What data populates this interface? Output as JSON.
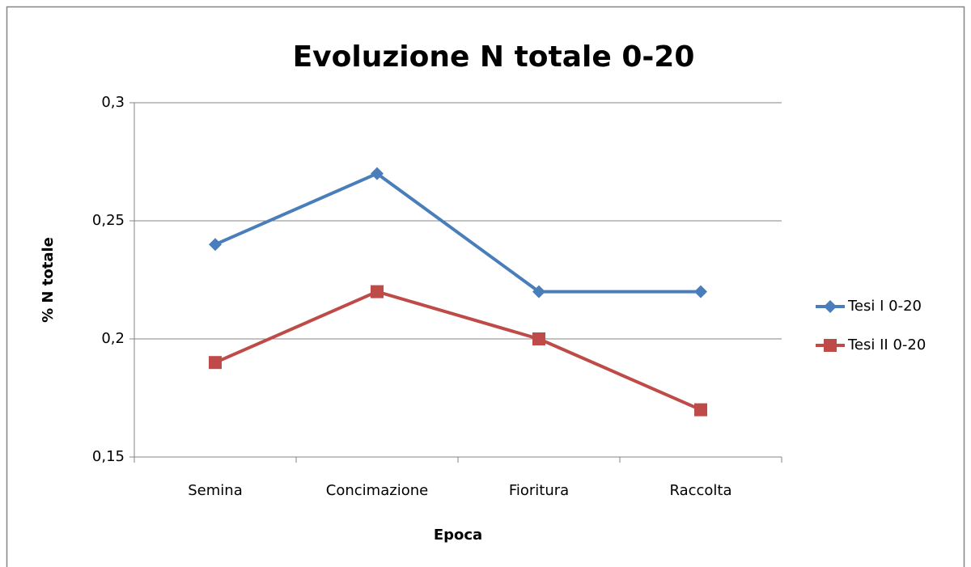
{
  "chart_data": {
    "type": "line",
    "title": "Evoluzione N totale 0-20",
    "x_label": "Epoca",
    "y_label": "% N totale",
    "categories": [
      "Semina",
      "Concimazione",
      "Fioritura",
      "Raccolta"
    ],
    "series": [
      {
        "name": "Tesi I 0-20",
        "color": "#4a7ebb",
        "marker": "diamond",
        "values": [
          0.24,
          0.27,
          0.22,
          0.22
        ]
      },
      {
        "name": "Tesi II 0-20",
        "color": "#be4b48",
        "marker": "square",
        "values": [
          0.19,
          0.22,
          0.2,
          0.17
        ]
      }
    ],
    "ylim": [
      0.15,
      0.3
    ],
    "yticks": [
      {
        "value": 0.15,
        "label": "0,15"
      },
      {
        "value": 0.2,
        "label": "0,2"
      },
      {
        "value": 0.25,
        "label": "0,25"
      },
      {
        "value": 0.3,
        "label": "0,3"
      }
    ],
    "grid": true,
    "legend": "right"
  }
}
